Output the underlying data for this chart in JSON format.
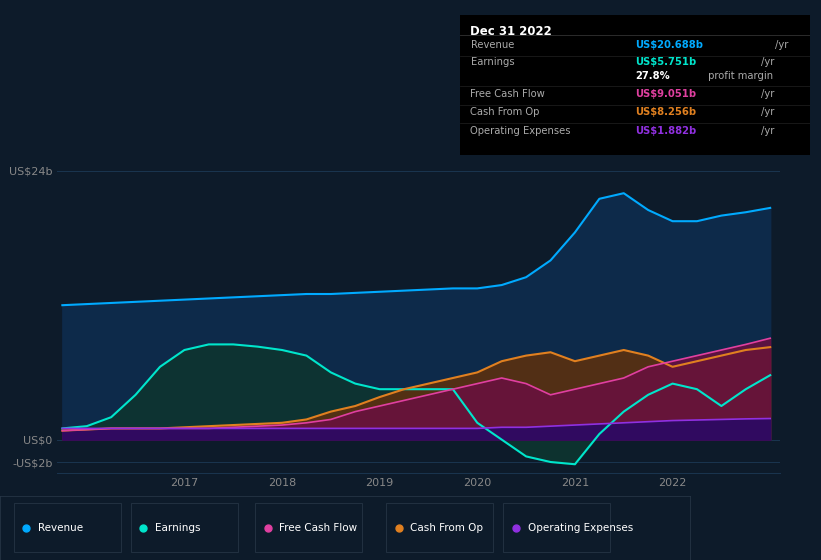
{
  "bg_color": "#0d1b2a",
  "plot_bg_color": "#0d1b2a",
  "grid_color": "#1a3550",
  "years_x": [
    2015.75,
    2016.0,
    2016.25,
    2016.5,
    2016.75,
    2017.0,
    2017.25,
    2017.5,
    2017.75,
    2018.0,
    2018.25,
    2018.5,
    2018.75,
    2019.0,
    2019.25,
    2019.5,
    2019.75,
    2020.0,
    2020.25,
    2020.5,
    2020.75,
    2021.0,
    2021.25,
    2021.5,
    2021.75,
    2022.0,
    2022.25,
    2022.5,
    2022.75,
    2023.0
  ],
  "revenue": [
    12.0,
    12.1,
    12.2,
    12.3,
    12.4,
    12.5,
    12.6,
    12.7,
    12.8,
    12.9,
    13.0,
    13.0,
    13.1,
    13.2,
    13.3,
    13.4,
    13.5,
    13.5,
    13.8,
    14.5,
    16.0,
    18.5,
    21.5,
    22.0,
    20.5,
    19.5,
    19.5,
    20.0,
    20.3,
    20.688
  ],
  "earnings": [
    1.0,
    1.2,
    2.0,
    4.0,
    6.5,
    8.0,
    8.5,
    8.5,
    8.3,
    8.0,
    7.5,
    6.0,
    5.0,
    4.5,
    4.5,
    4.5,
    4.5,
    1.5,
    0.0,
    -1.5,
    -2.0,
    -2.2,
    0.5,
    2.5,
    4.0,
    5.0,
    4.5,
    3.0,
    4.5,
    5.751
  ],
  "free_cash_flow": [
    0.8,
    0.9,
    1.0,
    1.0,
    1.0,
    1.0,
    1.0,
    1.1,
    1.2,
    1.3,
    1.5,
    1.8,
    2.5,
    3.0,
    3.5,
    4.0,
    4.5,
    5.0,
    5.5,
    5.0,
    4.0,
    4.5,
    5.0,
    5.5,
    6.5,
    7.0,
    7.5,
    8.0,
    8.5,
    9.051
  ],
  "cash_from_op": [
    0.8,
    0.9,
    1.0,
    1.0,
    1.0,
    1.1,
    1.2,
    1.3,
    1.4,
    1.5,
    1.8,
    2.5,
    3.0,
    3.8,
    4.5,
    5.0,
    5.5,
    6.0,
    7.0,
    7.5,
    7.8,
    7.0,
    7.5,
    8.0,
    7.5,
    6.5,
    7.0,
    7.5,
    8.0,
    8.256
  ],
  "operating_expenses": [
    1.0,
    1.0,
    1.0,
    1.0,
    1.0,
    1.0,
    1.0,
    1.0,
    1.0,
    1.0,
    1.0,
    1.0,
    1.0,
    1.0,
    1.0,
    1.0,
    1.0,
    1.0,
    1.1,
    1.1,
    1.2,
    1.3,
    1.4,
    1.5,
    1.6,
    1.7,
    1.75,
    1.8,
    1.85,
    1.882
  ],
  "revenue_line_color": "#00aaff",
  "revenue_fill_color": "#0d2a4a",
  "earnings_line_color": "#00e5cc",
  "earnings_fill_color": "#0d3530",
  "free_cash_flow_line_color": "#e040a0",
  "free_cash_flow_fill_color": "#6a1040",
  "cash_from_op_line_color": "#e08020",
  "cash_from_op_fill_color": "#5a3010",
  "operating_expenses_line_color": "#9030e0",
  "operating_expenses_fill_color": "#300a60",
  "ytick_labels": [
    "-US$2b",
    "US$0",
    "US$24b"
  ],
  "ytick_values": [
    -2,
    0,
    24
  ],
  "xtick_years": [
    2017,
    2018,
    2019,
    2020,
    2021,
    2022
  ],
  "ylim": [
    -3.0,
    27.0
  ],
  "xlim": [
    2015.7,
    2023.1
  ],
  "info_box_title": "Dec 31 2022",
  "info_rows": [
    {
      "label": "Revenue",
      "value": "US$20.688b",
      "unit": "/yr",
      "value_color": "#00aaff"
    },
    {
      "label": "Earnings",
      "value": "US$5.751b",
      "unit": "/yr",
      "value_color": "#00e5cc"
    },
    {
      "label": "",
      "value": "27.8%",
      "unit": " profit margin",
      "value_color": "#ffffff"
    },
    {
      "label": "Free Cash Flow",
      "value": "US$9.051b",
      "unit": "/yr",
      "value_color": "#e040a0"
    },
    {
      "label": "Cash From Op",
      "value": "US$8.256b",
      "unit": "/yr",
      "value_color": "#e08020"
    },
    {
      "label": "Operating Expenses",
      "value": "US$1.882b",
      "unit": "/yr",
      "value_color": "#9030e0"
    }
  ],
  "legend_items": [
    {
      "label": "Revenue",
      "color": "#00aaff"
    },
    {
      "label": "Earnings",
      "color": "#00e5cc"
    },
    {
      "label": "Free Cash Flow",
      "color": "#e040a0"
    },
    {
      "label": "Cash From Op",
      "color": "#e08020"
    },
    {
      "label": "Operating Expenses",
      "color": "#9030e0"
    }
  ]
}
